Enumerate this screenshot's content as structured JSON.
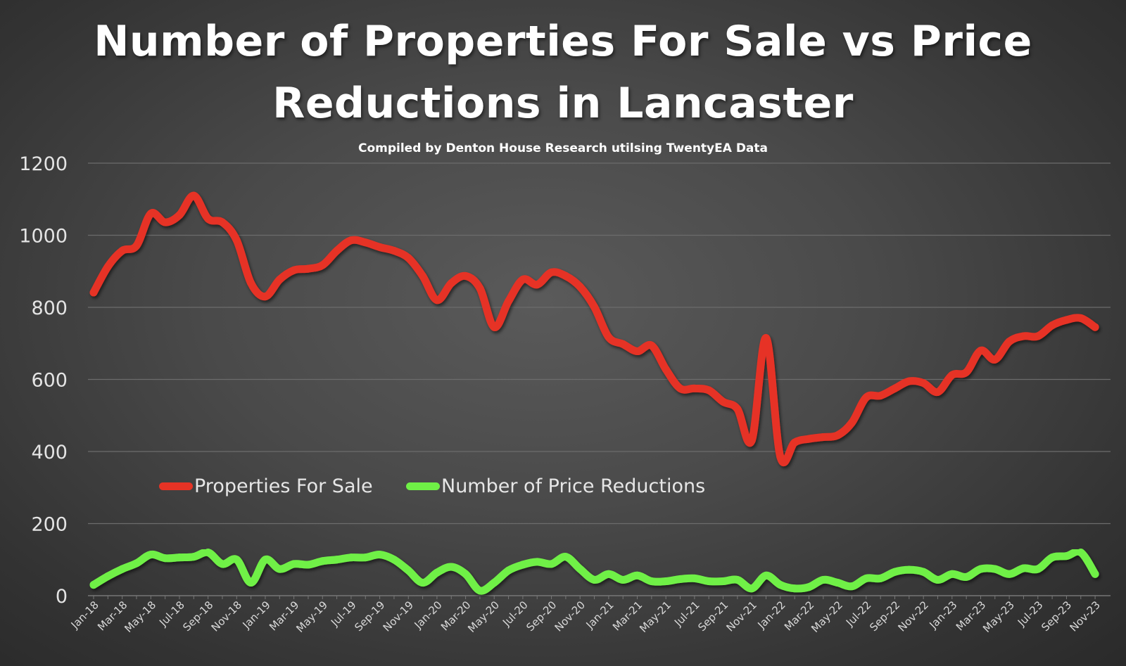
{
  "title_line1": "Number of Properties For Sale vs Price",
  "title_line2": "Reductions in Lancaster",
  "subtitle": "Compiled by Denton House Research utilsing TwentyEA Data",
  "chart_data": {
    "type": "line",
    "title": "Number of Properties For Sale vs Price Reductions in Lancaster",
    "subtitle": "Compiled by Denton House Research utilsing TwentyEA Data",
    "xlabel": "",
    "ylabel": "",
    "ylim": [
      0,
      1200
    ],
    "yticks": [
      0,
      200,
      400,
      600,
      800,
      1000,
      1200
    ],
    "grid": true,
    "legend_position": "center-left",
    "x": [
      "Jan-18",
      "Feb-18",
      "Mar-18",
      "Apr-18",
      "May-18",
      "Jun-18",
      "Jul-18",
      "Aug-18",
      "Sep-18",
      "Oct-18",
      "Nov-18",
      "Dec-18",
      "Jan-19",
      "Feb-19",
      "Mar-19",
      "Apr-19",
      "May-19",
      "Jun-19",
      "Jul-19",
      "Aug-19",
      "Sep-19",
      "Oct-19",
      "Nov-19",
      "Dec-19",
      "Jan-20",
      "Feb-20",
      "Mar-20",
      "Apr-20",
      "May-20",
      "Jun-20",
      "Jul-20",
      "Aug-20",
      "Sep-20",
      "Oct-20",
      "Nov-20",
      "Dec-20",
      "Jan-21",
      "Feb-21",
      "Mar-21",
      "Apr-21",
      "May-21",
      "Jun-21",
      "Jul-21",
      "Aug-21",
      "Sep-21",
      "Oct-21",
      "Nov-21",
      "Dec-21",
      "Jan-22",
      "Feb-22",
      "Mar-22",
      "Apr-22",
      "May-22",
      "Jun-22",
      "Jul-22",
      "Aug-22",
      "Sep-22",
      "Oct-22",
      "Nov-22",
      "Dec-22",
      "Jan-23",
      "Feb-23",
      "Mar-23",
      "Apr-23",
      "May-23",
      "Jun-23",
      "Jul-23",
      "Aug-23",
      "Sep-23",
      "Oct-23",
      "Nov-23"
    ],
    "xtick_labels": [
      "Jan-18",
      "Mar-18",
      "May-18",
      "Jul-18",
      "Sep-18",
      "Nov-18",
      "Jan-19",
      "Mar-19",
      "May-19",
      "Jul-19",
      "Sep-19",
      "Nov-19",
      "Jan-20",
      "Mar-20",
      "May-20",
      "Jul-20",
      "Sep-20",
      "Nov-20",
      "Jan-21",
      "Mar-21",
      "May-21",
      "Jul-21",
      "Sep-21",
      "Nov-21",
      "Jan-22",
      "Mar-22",
      "May-22",
      "Jul-22",
      "Sep-22",
      "Nov-22",
      "Jan-23",
      "Mar-23",
      "May-23",
      "Jul-23",
      "Sep-23",
      "Nov-23"
    ],
    "series": [
      {
        "name": "Properties For Sale",
        "color": "#e63325",
        "values": [
          841,
          913,
          957,
          971,
          1060,
          1036,
          1056,
          1110,
          1046,
          1036,
          986,
          867,
          830,
          877,
          903,
          907,
          917,
          957,
          986,
          980,
          967,
          957,
          937,
          887,
          820,
          867,
          887,
          853,
          745,
          817,
          877,
          863,
          897,
          887,
          857,
          801,
          717,
          698,
          678,
          694,
          628,
          575,
          575,
          570,
          538,
          518,
          430,
          715,
          385,
          425,
          435,
          440,
          445,
          480,
          550,
          555,
          575,
          595,
          590,
          565,
          612,
          620,
          680,
          655,
          705,
          720,
          720,
          750,
          765,
          770,
          745
        ]
      },
      {
        "name": "Number of Price Reductions",
        "color": "#6ff046",
        "values": [
          30,
          54,
          74,
          90,
          114,
          104,
          106,
          108,
          120,
          88,
          100,
          36,
          100,
          74,
          88,
          86,
          96,
          100,
          106,
          106,
          114,
          100,
          70,
          36,
          64,
          80,
          60,
          14,
          36,
          70,
          86,
          94,
          88,
          108,
          74,
          44,
          60,
          44,
          56,
          40,
          40,
          46,
          48,
          40,
          40,
          44,
          20,
          56,
          30,
          20,
          24,
          44,
          36,
          26,
          48,
          48,
          66,
          72,
          66,
          44,
          60,
          52,
          74,
          74,
          60,
          76,
          74,
          106,
          110,
          120,
          60
        ]
      }
    ]
  }
}
